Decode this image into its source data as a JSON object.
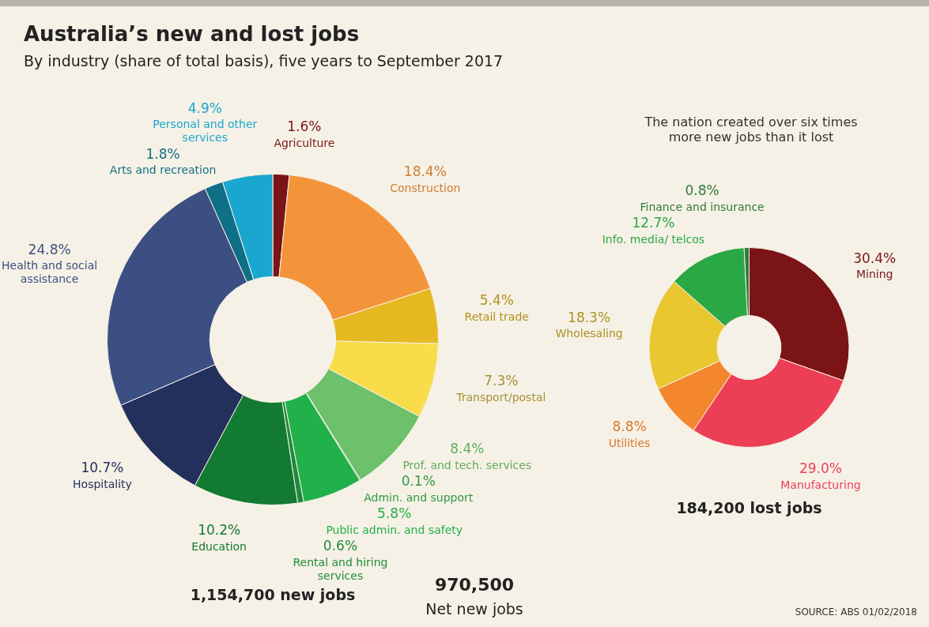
{
  "chart_data": [
    {
      "type": "donut",
      "title": "Australia’s new and lost jobs",
      "subtitle": "By industry (share of total basis), five years to September 2017",
      "categories": [
        "Agriculture",
        "Construction",
        "Retail trade",
        "Transport/postal",
        "Prof. and tech. services",
        "Admin. and support",
        "Public admin. and safety",
        "Rental and hiring services",
        "Education",
        "Hospitality",
        "Health and social assistance",
        "Arts and recreation",
        "Personal and other services"
      ],
      "values": [
        1.6,
        18.4,
        5.4,
        7.3,
        8.4,
        0.1,
        5.8,
        0.6,
        10.2,
        10.7,
        24.8,
        1.8,
        4.9
      ],
      "value_labels": [
        "1.6%",
        "18.4%",
        "5.4%",
        "7.3%",
        "8.4%",
        "0.1%",
        "5.8%",
        "0.6%",
        "10.2%",
        "10.7%",
        "24.8%",
        "1.8%",
        "4.9%"
      ],
      "colors": [
        "#7a1416",
        "#f4943a",
        "#e6b923",
        "#f9dc4a",
        "#6cc16a",
        "#2f9a45",
        "#22b04b",
        "#1f8a3c",
        "#137a32",
        "#24305c",
        "#3b4f82",
        "#0f6f86",
        "#1aa7cf"
      ],
      "annotations": [
        "1,154,700 new jobs"
      ]
    },
    {
      "type": "donut",
      "categories": [
        "Mining",
        "Manufacturing",
        "Utilities",
        "Wholesaling",
        "Info. media/ telcos",
        "Finance and insurance"
      ],
      "values": [
        30.4,
        29.0,
        8.8,
        18.3,
        12.7,
        0.8
      ],
      "value_labels": [
        "30.4%",
        "29.0%",
        "8.8%",
        "18.3%",
        "12.7%",
        "0.8%"
      ],
      "colors": [
        "#7a1416",
        "#ec3f56",
        "#f4872e",
        "#e9c72e",
        "#2aa845",
        "#2f7a3c"
      ],
      "annotations": [
        "The nation created over six times more new jobs than it lost",
        "184,200 lost jobs"
      ]
    },
    {
      "type": "other",
      "annotations": [
        "970,500",
        "Net new jobs",
        "SOURCE: ABS 01/02/2018"
      ]
    }
  ]
}
